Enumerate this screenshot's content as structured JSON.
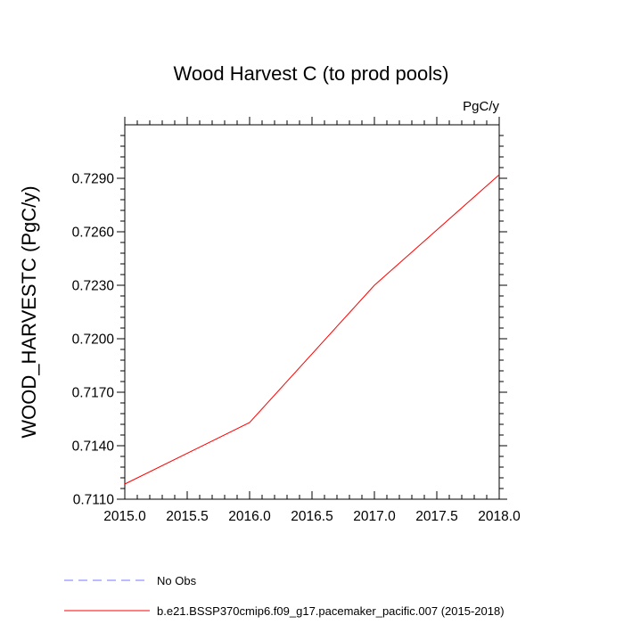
{
  "chart_data": {
    "type": "line",
    "title": "Wood Harvest C (to prod pools)",
    "units": "PgC/y",
    "xlabel": "",
    "ylabel": "WOOD_HARVESTC  (PgC/y)",
    "xlim": [
      2015.0,
      2018.0
    ],
    "ylim": [
      0.711,
      0.732
    ],
    "x_ticks": [
      "2015.0",
      "2015.5",
      "2016.0",
      "2016.5",
      "2017.0",
      "2017.5",
      "2018.0"
    ],
    "y_ticks": [
      "0.7110",
      "0.7140",
      "0.7170",
      "0.7200",
      "0.7230",
      "0.7260",
      "0.7290"
    ],
    "grid": false,
    "series": [
      {
        "name": "b.e21.BSSP370cmip6.f09_g17.pacemaker_pacific.007 (2015-2018)",
        "color": "#ff0000",
        "dash": "solid",
        "x": [
          2015.0,
          2016.0,
          2017.0,
          2018.0
        ],
        "y": [
          0.71185,
          0.7153,
          0.723,
          0.7292
        ]
      }
    ],
    "legend": [
      {
        "label": "No Obs",
        "color": "#7777ff",
        "dash": "dashed"
      },
      {
        "label": "b.e21.BSSP370cmip6.f09_g17.pacemaker_pacific.007 (2015-2018)",
        "color": "#ff0000",
        "dash": "solid"
      }
    ],
    "legend_position": "bottom-center"
  }
}
